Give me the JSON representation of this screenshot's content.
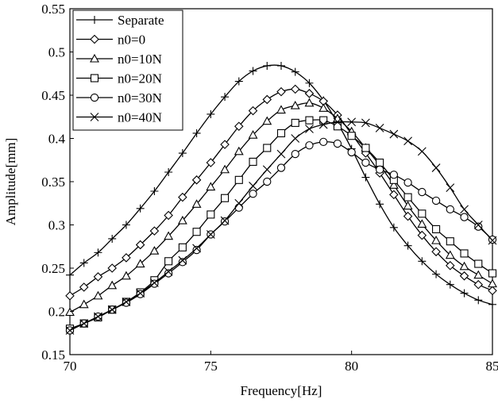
{
  "chart_data": {
    "type": "line",
    "xlabel": "Frequency[Hz]",
    "ylabel": "Amplitude[mm]",
    "xlim": [
      70,
      85
    ],
    "ylim": [
      0.15,
      0.55
    ],
    "xticks": [
      70,
      75,
      80,
      85
    ],
    "xtick_labels": [
      "70",
      "75",
      "80",
      "85"
    ],
    "yticks": [
      0.15,
      0.2,
      0.25,
      0.3,
      0.35,
      0.4,
      0.45,
      0.5,
      0.55
    ],
    "ytick_labels": [
      "0.15",
      "0.2",
      "0.25",
      "0.3",
      "0.35",
      "0.4",
      "0.45",
      "0.5",
      "0.55"
    ],
    "grid": false,
    "legend_position": "top-left",
    "line_color": "#000000",
    "series": [
      {
        "name": "Separate",
        "marker": "plus",
        "x": [
          70.0,
          70.5,
          71.0,
          71.5,
          72.0,
          72.5,
          73.0,
          73.5,
          74.0,
          74.5,
          75.0,
          75.5,
          76.0,
          76.5,
          77.0,
          77.5,
          78.0,
          78.5,
          79.0,
          79.5,
          80.0,
          80.5,
          81.0,
          81.5,
          82.0,
          82.5,
          83.0,
          83.5,
          84.0,
          84.5,
          85.0
        ],
        "y": [
          0.242,
          0.256,
          0.268,
          0.284,
          0.3,
          0.319,
          0.339,
          0.361,
          0.383,
          0.406,
          0.428,
          0.448,
          0.466,
          0.478,
          0.484,
          0.484,
          0.477,
          0.464,
          0.444,
          0.418,
          0.388,
          0.355,
          0.324,
          0.297,
          0.276,
          0.258,
          0.243,
          0.231,
          0.221,
          0.213,
          0.208
        ]
      },
      {
        "name": "n0=0",
        "marker": "diamond",
        "x": [
          70.0,
          70.5,
          71.0,
          71.5,
          72.0,
          72.5,
          73.0,
          73.5,
          74.0,
          74.5,
          75.0,
          75.5,
          76.0,
          76.5,
          77.0,
          77.5,
          78.0,
          78.5,
          79.0,
          79.5,
          80.0,
          80.5,
          81.0,
          81.5,
          82.0,
          82.5,
          83.0,
          83.5,
          84.0,
          84.5,
          85.0
        ],
        "y": [
          0.218,
          0.228,
          0.24,
          0.25,
          0.262,
          0.277,
          0.293,
          0.311,
          0.332,
          0.352,
          0.372,
          0.393,
          0.414,
          0.432,
          0.445,
          0.454,
          0.457,
          0.452,
          0.443,
          0.427,
          0.405,
          0.383,
          0.36,
          0.335,
          0.31,
          0.288,
          0.269,
          0.253,
          0.241,
          0.231,
          0.224
        ]
      },
      {
        "name": "n0=10N",
        "marker": "triangle",
        "x": [
          70.0,
          70.5,
          71.0,
          71.5,
          72.0,
          72.5,
          73.0,
          73.5,
          74.0,
          74.5,
          75.0,
          75.5,
          76.0,
          76.5,
          77.0,
          77.5,
          78.0,
          78.5,
          79.0,
          79.5,
          80.0,
          80.5,
          81.0,
          81.5,
          82.0,
          82.5,
          83.0,
          83.5,
          84.0,
          84.5,
          85.0
        ],
        "y": [
          0.199,
          0.208,
          0.218,
          0.23,
          0.241,
          0.255,
          0.27,
          0.287,
          0.305,
          0.324,
          0.344,
          0.364,
          0.385,
          0.404,
          0.42,
          0.433,
          0.438,
          0.441,
          0.435,
          0.423,
          0.408,
          0.389,
          0.369,
          0.346,
          0.322,
          0.301,
          0.282,
          0.265,
          0.252,
          0.242,
          0.232
        ]
      },
      {
        "name": "n0=20N",
        "marker": "square",
        "x": [
          70.0,
          70.5,
          71.0,
          71.5,
          72.0,
          72.5,
          73.0,
          73.5,
          74.0,
          74.5,
          75.0,
          75.5,
          76.0,
          76.5,
          77.0,
          77.5,
          78.0,
          78.5,
          79.0,
          79.5,
          80.0,
          80.5,
          81.0,
          81.5,
          82.0,
          82.5,
          83.0,
          83.5,
          84.0,
          84.5,
          85.0
        ],
        "y": [
          0.18,
          0.186,
          0.193,
          0.202,
          0.211,
          0.222,
          0.236,
          0.258,
          0.274,
          0.292,
          0.312,
          0.331,
          0.352,
          0.373,
          0.389,
          0.406,
          0.418,
          0.421,
          0.421,
          0.414,
          0.403,
          0.389,
          0.372,
          0.352,
          0.332,
          0.313,
          0.295,
          0.281,
          0.267,
          0.255,
          0.244
        ]
      },
      {
        "name": "n0=30N",
        "marker": "circle",
        "x": [
          70.0,
          70.5,
          71.0,
          71.5,
          72.0,
          72.5,
          73.0,
          73.5,
          74.0,
          74.5,
          75.0,
          75.5,
          76.0,
          76.5,
          77.0,
          77.5,
          78.0,
          78.5,
          79.0,
          79.5,
          80.0,
          80.5,
          81.0,
          81.5,
          82.0,
          82.5,
          83.0,
          83.5,
          84.0,
          84.5,
          85.0
        ],
        "y": [
          0.178,
          0.186,
          0.194,
          0.202,
          0.21,
          0.22,
          0.232,
          0.244,
          0.257,
          0.271,
          0.289,
          0.304,
          0.32,
          0.336,
          0.35,
          0.366,
          0.382,
          0.392,
          0.396,
          0.394,
          0.384,
          0.372,
          0.364,
          0.358,
          0.349,
          0.338,
          0.328,
          0.318,
          0.309,
          0.298,
          0.283
        ]
      },
      {
        "name": "n0=40N",
        "marker": "x",
        "x": [
          70.0,
          70.5,
          71.0,
          71.5,
          72.0,
          72.5,
          73.0,
          73.5,
          74.0,
          74.5,
          75.0,
          75.5,
          76.0,
          76.5,
          77.0,
          77.5,
          78.0,
          78.5,
          79.0,
          79.5,
          80.0,
          80.5,
          81.0,
          81.5,
          82.0,
          82.5,
          83.0,
          83.5,
          84.0,
          84.5,
          85.0
        ],
        "y": [
          0.178,
          0.186,
          0.194,
          0.202,
          0.211,
          0.221,
          0.233,
          0.246,
          0.259,
          0.273,
          0.289,
          0.305,
          0.325,
          0.345,
          0.364,
          0.382,
          0.4,
          0.411,
          0.416,
          0.419,
          0.419,
          0.418,
          0.412,
          0.405,
          0.397,
          0.385,
          0.366,
          0.343,
          0.318,
          0.3,
          0.282
        ]
      }
    ]
  }
}
